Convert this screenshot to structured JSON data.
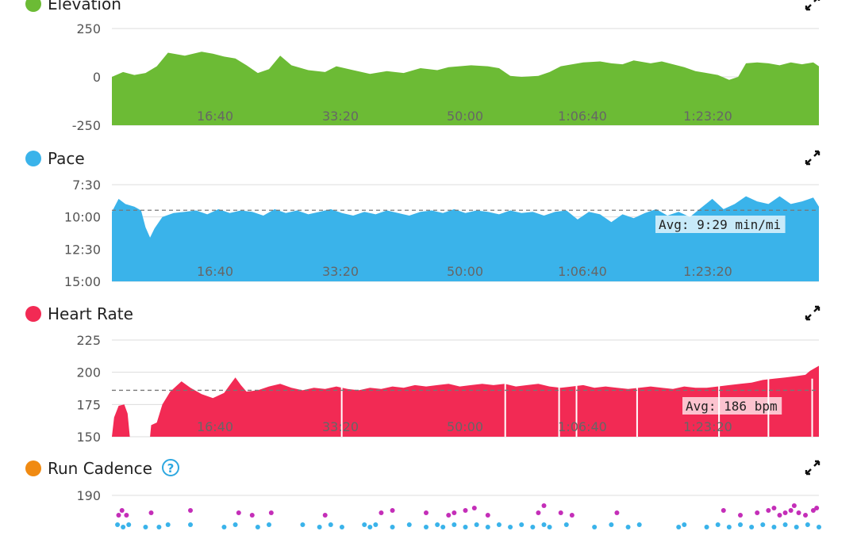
{
  "chart_data": [
    {
      "type": "area",
      "title": "Elevation",
      "color": "#6cbb35",
      "ylim": [
        -250,
        250
      ],
      "y_ticks": [
        "250",
        "0",
        "-250"
      ],
      "x_ticks": [
        "16:40",
        "33:20",
        "50:00",
        "1:06:40",
        "1:23:20"
      ],
      "xlim_seconds": [
        0,
        5700
      ],
      "grid": true,
      "points": [
        [
          0,
          0
        ],
        [
          100,
          25
        ],
        [
          200,
          10
        ],
        [
          300,
          20
        ],
        [
          400,
          55
        ],
        [
          500,
          125
        ],
        [
          650,
          110
        ],
        [
          800,
          130
        ],
        [
          900,
          120
        ],
        [
          1000,
          105
        ],
        [
          1100,
          95
        ],
        [
          1200,
          60
        ],
        [
          1300,
          20
        ],
        [
          1400,
          40
        ],
        [
          1500,
          110
        ],
        [
          1600,
          60
        ],
        [
          1750,
          35
        ],
        [
          1900,
          25
        ],
        [
          2000,
          55
        ],
        [
          2150,
          35
        ],
        [
          2300,
          15
        ],
        [
          2450,
          30
        ],
        [
          2600,
          20
        ],
        [
          2750,
          45
        ],
        [
          2900,
          35
        ],
        [
          3000,
          50
        ],
        [
          3200,
          60
        ],
        [
          3350,
          55
        ],
        [
          3450,
          45
        ],
        [
          3550,
          5
        ],
        [
          3650,
          0
        ],
        [
          3800,
          5
        ],
        [
          3900,
          25
        ],
        [
          4000,
          55
        ],
        [
          4200,
          75
        ],
        [
          4350,
          80
        ],
        [
          4450,
          70
        ],
        [
          4550,
          65
        ],
        [
          4650,
          85
        ],
        [
          4800,
          70
        ],
        [
          4900,
          80
        ],
        [
          5000,
          65
        ],
        [
          5100,
          50
        ],
        [
          5200,
          30
        ],
        [
          5300,
          20
        ],
        [
          5400,
          10
        ],
        [
          5500,
          -15
        ],
        [
          5580,
          0
        ],
        [
          5650,
          70
        ],
        [
          5750,
          75
        ],
        [
          5850,
          70
        ],
        [
          5950,
          60
        ],
        [
          6050,
          75
        ],
        [
          6150,
          65
        ],
        [
          6250,
          75
        ],
        [
          6300,
          55
        ]
      ]
    },
    {
      "type": "area",
      "title": "Pace",
      "color": "#3ab3ea",
      "ylim": [
        7.5,
        15
      ],
      "y_ticks": [
        "7:30",
        "10:00",
        "12:30",
        "15:00"
      ],
      "x_ticks": [
        "16:40",
        "33:20",
        "50:00",
        "1:06:40",
        "1:23:20"
      ],
      "xlim_seconds": [
        0,
        5700
      ],
      "grid": true,
      "average": 9.483,
      "average_label": "Avg: 9:29 min/mi",
      "points": [
        [
          0,
          9.6
        ],
        [
          60,
          8.6
        ],
        [
          120,
          9.0
        ],
        [
          200,
          9.2
        ],
        [
          260,
          9.5
        ],
        [
          300,
          10.8
        ],
        [
          340,
          11.6
        ],
        [
          380,
          10.9
        ],
        [
          450,
          10.0
        ],
        [
          550,
          9.7
        ],
        [
          650,
          9.6
        ],
        [
          750,
          9.5
        ],
        [
          850,
          9.8
        ],
        [
          950,
          9.4
        ],
        [
          1050,
          9.7
        ],
        [
          1150,
          9.5
        ],
        [
          1250,
          9.6
        ],
        [
          1350,
          9.9
        ],
        [
          1450,
          9.4
        ],
        [
          1550,
          9.7
        ],
        [
          1650,
          9.5
        ],
        [
          1750,
          9.8
        ],
        [
          1850,
          9.6
        ],
        [
          1950,
          9.4
        ],
        [
          2050,
          9.7
        ],
        [
          2150,
          9.9
        ],
        [
          2250,
          9.6
        ],
        [
          2350,
          9.8
        ],
        [
          2450,
          9.5
        ],
        [
          2550,
          9.7
        ],
        [
          2650,
          9.9
        ],
        [
          2750,
          9.6
        ],
        [
          2850,
          9.5
        ],
        [
          2950,
          9.7
        ],
        [
          3050,
          9.4
        ],
        [
          3150,
          9.7
        ],
        [
          3250,
          9.5
        ],
        [
          3350,
          9.6
        ],
        [
          3450,
          9.8
        ],
        [
          3550,
          9.5
        ],
        [
          3650,
          9.7
        ],
        [
          3750,
          9.6
        ],
        [
          3850,
          9.9
        ],
        [
          3950,
          9.6
        ],
        [
          4050,
          9.5
        ],
        [
          4150,
          10.2
        ],
        [
          4250,
          9.6
        ],
        [
          4350,
          9.8
        ],
        [
          4450,
          10.4
        ],
        [
          4550,
          9.8
        ],
        [
          4650,
          10.1
        ],
        [
          4750,
          9.7
        ],
        [
          4850,
          9.4
        ],
        [
          4950,
          9.9
        ],
        [
          5050,
          9.6
        ],
        [
          5150,
          10.0
        ],
        [
          5250,
          9.3
        ],
        [
          5350,
          8.6
        ],
        [
          5450,
          9.4
        ],
        [
          5550,
          9.0
        ],
        [
          5650,
          8.4
        ],
        [
          5750,
          8.8
        ],
        [
          5850,
          9.0
        ],
        [
          5950,
          8.4
        ],
        [
          6050,
          9.0
        ],
        [
          6150,
          8.8
        ],
        [
          6250,
          8.5
        ],
        [
          6300,
          9.2
        ]
      ]
    },
    {
      "type": "area",
      "title": "Heart Rate",
      "color": "#f22a54",
      "ylim": [
        150,
        225
      ],
      "y_ticks": [
        "225",
        "200",
        "175",
        "150"
      ],
      "x_ticks": [
        "16:40",
        "33:20",
        "50:00",
        "1:06:40",
        "1:23:20"
      ],
      "xlim_seconds": [
        0,
        5700
      ],
      "grid": true,
      "average": 186,
      "average_label": "Avg: 186 bpm",
      "points": [
        [
          0,
          150
        ],
        [
          20,
          165
        ],
        [
          60,
          174
        ],
        [
          110,
          175
        ],
        [
          140,
          168
        ],
        [
          160,
          150
        ],
        [
          200,
          150
        ],
        [
          250,
          150
        ],
        [
          300,
          150
        ],
        [
          340,
          150
        ],
        [
          350,
          159
        ],
        [
          400,
          161
        ],
        [
          450,
          175
        ],
        [
          520,
          185
        ],
        [
          620,
          193
        ],
        [
          700,
          188
        ],
        [
          800,
          183
        ],
        [
          900,
          180
        ],
        [
          1000,
          184
        ],
        [
          1050,
          190
        ],
        [
          1100,
          196
        ],
        [
          1150,
          190
        ],
        [
          1200,
          185
        ],
        [
          1300,
          186
        ],
        [
          1400,
          189
        ],
        [
          1500,
          191
        ],
        [
          1600,
          188
        ],
        [
          1700,
          186
        ],
        [
          1800,
          188
        ],
        [
          1900,
          187
        ],
        [
          2000,
          189
        ],
        [
          2100,
          187
        ],
        [
          2200,
          186
        ],
        [
          2300,
          188
        ],
        [
          2400,
          187
        ],
        [
          2500,
          189
        ],
        [
          2600,
          188
        ],
        [
          2700,
          190
        ],
        [
          2800,
          189
        ],
        [
          2900,
          190
        ],
        [
          3000,
          191
        ],
        [
          3100,
          189
        ],
        [
          3200,
          190
        ],
        [
          3300,
          191
        ],
        [
          3400,
          190
        ],
        [
          3500,
          191
        ],
        [
          3600,
          189
        ],
        [
          3700,
          190
        ],
        [
          3800,
          191
        ],
        [
          3900,
          189
        ],
        [
          4000,
          188
        ],
        [
          4100,
          189
        ],
        [
          4200,
          190
        ],
        [
          4300,
          188
        ],
        [
          4400,
          189
        ],
        [
          4500,
          188
        ],
        [
          4600,
          187
        ],
        [
          4700,
          188
        ],
        [
          4800,
          189
        ],
        [
          4900,
          188
        ],
        [
          5000,
          187
        ],
        [
          5100,
          189
        ],
        [
          5200,
          188
        ],
        [
          5300,
          188
        ],
        [
          5400,
          189
        ],
        [
          5500,
          190
        ],
        [
          5600,
          191
        ],
        [
          5700,
          192
        ],
        [
          5800,
          194
        ],
        [
          5900,
          195
        ],
        [
          6000,
          196
        ],
        [
          6100,
          197
        ],
        [
          6180,
          198
        ],
        [
          6220,
          201
        ],
        [
          6260,
          203
        ],
        [
          6300,
          205
        ]
      ]
    },
    {
      "type": "scatter",
      "title": "Run Cadence",
      "legend_color": "#f08a12",
      "help_icon": "question-circle-icon",
      "y_ticks": [
        "190"
      ],
      "ylim": [
        160,
        200
      ],
      "xlim_seconds": [
        0,
        5700
      ],
      "grid": true,
      "point_colors": [
        "#3ab3ea",
        "#c42eb8"
      ],
      "points_blue": [
        [
          50,
          166
        ],
        [
          100,
          165
        ],
        [
          150,
          166
        ],
        [
          300,
          165
        ],
        [
          420,
          165
        ],
        [
          500,
          166
        ],
        [
          700,
          166
        ],
        [
          1000,
          165
        ],
        [
          1100,
          166
        ],
        [
          1300,
          165
        ],
        [
          1400,
          166
        ],
        [
          1700,
          166
        ],
        [
          1850,
          165
        ],
        [
          1950,
          166
        ],
        [
          2050,
          165
        ],
        [
          2250,
          166
        ],
        [
          2300,
          165
        ],
        [
          2350,
          166
        ],
        [
          2500,
          165
        ],
        [
          2650,
          166
        ],
        [
          2800,
          165
        ],
        [
          2900,
          166
        ],
        [
          2950,
          165
        ],
        [
          3050,
          166
        ],
        [
          3150,
          165
        ],
        [
          3250,
          166
        ],
        [
          3350,
          165
        ],
        [
          3450,
          166
        ],
        [
          3550,
          165
        ],
        [
          3650,
          166
        ],
        [
          3750,
          165
        ],
        [
          3850,
          166
        ],
        [
          3900,
          165
        ],
        [
          4050,
          166
        ],
        [
          4300,
          165
        ],
        [
          4450,
          166
        ],
        [
          4600,
          165
        ],
        [
          4700,
          166
        ],
        [
          5050,
          165
        ],
        [
          5100,
          166
        ],
        [
          5300,
          165
        ],
        [
          5400,
          166
        ],
        [
          5500,
          165
        ],
        [
          5600,
          166
        ],
        [
          5700,
          165
        ],
        [
          5800,
          166
        ],
        [
          5900,
          165
        ],
        [
          6000,
          166
        ],
        [
          6100,
          165
        ],
        [
          6200,
          166
        ],
        [
          6300,
          165
        ]
      ],
      "points_magenta": [
        [
          60,
          170
        ],
        [
          90,
          172
        ],
        [
          130,
          170
        ],
        [
          350,
          171
        ],
        [
          700,
          172
        ],
        [
          1130,
          171
        ],
        [
          1250,
          170
        ],
        [
          1420,
          171
        ],
        [
          1900,
          170
        ],
        [
          2400,
          171
        ],
        [
          2500,
          172
        ],
        [
          2800,
          171
        ],
        [
          3000,
          170
        ],
        [
          3050,
          171
        ],
        [
          3150,
          172
        ],
        [
          3230,
          173
        ],
        [
          3350,
          170
        ],
        [
          3800,
          171
        ],
        [
          3850,
          174
        ],
        [
          4000,
          171
        ],
        [
          4100,
          170
        ],
        [
          4500,
          171
        ],
        [
          5450,
          172
        ],
        [
          5600,
          170
        ],
        [
          5750,
          171
        ],
        [
          5850,
          172
        ],
        [
          5900,
          173
        ],
        [
          5950,
          170
        ],
        [
          6000,
          171
        ],
        [
          6050,
          172
        ],
        [
          6080,
          174
        ],
        [
          6120,
          171
        ],
        [
          6180,
          170
        ],
        [
          6250,
          172
        ],
        [
          6280,
          173
        ]
      ]
    }
  ]
}
